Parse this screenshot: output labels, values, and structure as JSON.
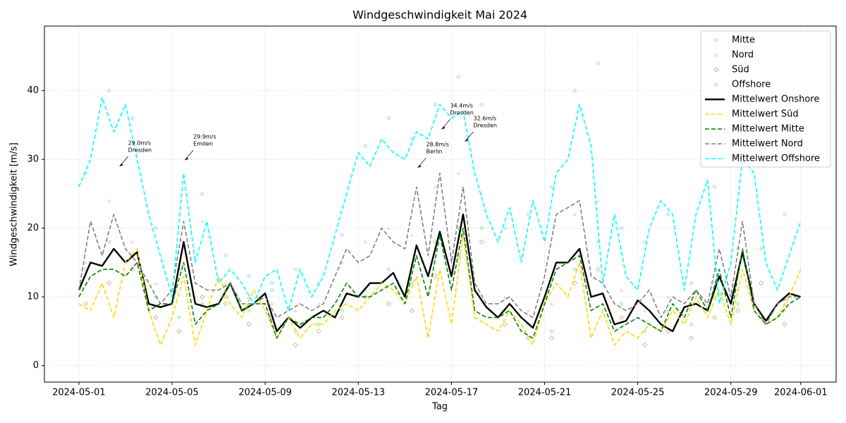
{
  "chart_data": {
    "type": "line",
    "title": "Windgeschwindigkeit Mai 2024",
    "xlabel": "Tag",
    "ylabel": "Windgeschwindigkeit [m/s]",
    "xlim": [
      -1.48,
      32.52
    ],
    "ylim": [
      -2.4,
      49.4
    ],
    "xticks": [
      {
        "value": 0,
        "label": "2024-05-01"
      },
      {
        "value": 4,
        "label": "2024-05-05"
      },
      {
        "value": 8,
        "label": "2024-05-09"
      },
      {
        "value": 12,
        "label": "2024-05-13"
      },
      {
        "value": 16,
        "label": "2024-05-17"
      },
      {
        "value": 20,
        "label": "2024-05-21"
      },
      {
        "value": 24,
        "label": "2024-05-25"
      },
      {
        "value": 28,
        "label": "2024-05-29"
      },
      {
        "value": 31,
        "label": "2024-06-01"
      }
    ],
    "yticks": [
      0,
      10,
      20,
      30,
      40
    ],
    "grid": true,
    "legend": "upper right",
    "x": [
      0,
      0.5,
      1,
      1.5,
      2,
      2.5,
      3,
      3.5,
      4,
      4.5,
      5,
      5.5,
      6,
      6.5,
      7,
      7.5,
      8,
      8.5,
      9,
      9.5,
      10,
      10.5,
      11,
      11.5,
      12,
      12.5,
      13,
      13.5,
      14,
      14.5,
      15,
      15.5,
      16,
      16.5,
      17,
      17.5,
      18,
      18.5,
      19,
      19.5,
      20,
      20.5,
      21,
      21.5,
      22,
      22.5,
      23,
      23.5,
      24,
      24.5,
      25,
      25.5,
      26,
      26.5,
      27,
      27.5,
      28,
      28.5,
      29,
      29.5,
      30,
      30.5,
      31
    ],
    "series": [
      {
        "name": "Mitte",
        "type": "scatter",
        "marker": "circle",
        "color": "#90ee90",
        "x": [
          0.3,
          1.3,
          2.3,
          3.3,
          4.3,
          5.3,
          6.3,
          7.3,
          8.3,
          9.3,
          10.3,
          11.3,
          12.3,
          13.3,
          14.3,
          15.3,
          16.3,
          17.3,
          18.3,
          19.3,
          20.3,
          21.3,
          22.3,
          23.3,
          24.3,
          25.3,
          26.3,
          27.3,
          28.3,
          29.3,
          30.3
        ],
        "values": [
          14,
          18,
          16,
          10,
          7,
          9,
          10,
          8,
          11,
          5,
          6,
          8,
          11,
          14,
          12,
          18,
          20,
          20,
          8,
          6,
          5,
          14,
          18,
          9,
          5,
          8,
          6,
          10,
          9,
          17,
          8
        ]
      },
      {
        "name": "Nord",
        "type": "scatter",
        "marker": "triangle",
        "color": "#f4c2cc",
        "x": [
          0.3,
          1.3,
          2.3,
          3.3,
          4.3,
          5.3,
          6.3,
          7.3,
          8.3,
          9.3,
          10.3,
          11.3,
          12.3,
          13.3,
          14.3,
          15.3,
          16.3,
          17.3,
          18.3,
          19.3,
          20.3,
          21.3,
          22.3,
          23.3,
          24.3,
          25.3,
          26.3,
          27.3,
          28.3,
          29.3,
          30.3
        ],
        "values": [
          15,
          24,
          18,
          12,
          14,
          21,
          12,
          10,
          9,
          8,
          9,
          15,
          18,
          20,
          19,
          26,
          28,
          25,
          10,
          8,
          9,
          22,
          24,
          11,
          8,
          10,
          9,
          12,
          11,
          20,
          9
        ]
      },
      {
        "name": "Süd",
        "type": "scatter",
        "marker": "diamond",
        "color": "#c8a878",
        "x": [
          0.3,
          1.3,
          2.3,
          3.3,
          4.3,
          5.3,
          6.3,
          7.3,
          8.3,
          9.3,
          10.3,
          11.3,
          12.3,
          13.3,
          14.3,
          15.3,
          16.3,
          17.3,
          18.3,
          19.3,
          20.3,
          21.3,
          22.3,
          23.3,
          24.3,
          25.3,
          26.3,
          27.3,
          28.3,
          29.3,
          30.3
        ],
        "values": [
          9,
          12,
          14,
          7,
          5,
          10,
          9,
          6,
          7,
          3,
          5,
          7,
          10,
          9,
          8,
          13,
          16,
          18,
          6,
          4,
          4,
          12,
          14,
          7,
          3,
          5,
          4,
          7,
          8,
          12,
          6
        ]
      },
      {
        "name": "Offshore",
        "type": "scatter",
        "marker": "circle",
        "color": "#add8e6",
        "x": [
          0.3,
          1.3,
          2.3,
          3.3,
          4.3,
          5.3,
          6.3,
          7.3,
          8.3,
          9.3,
          10.3,
          11.3,
          12.3,
          13.3,
          14.3,
          15.3,
          16.3,
          17.3,
          18.3,
          19.3,
          20.3,
          21.3,
          22.3,
          23.3,
          24.3,
          25.3,
          26.3,
          27.3,
          28.3,
          29.3,
          30.3
        ],
        "values": [
          28,
          40,
          36,
          20,
          14,
          25,
          16,
          13,
          12,
          14,
          12,
          19,
          32,
          36,
          33,
          38,
          42,
          38,
          20,
          22,
          26,
          40,
          44,
          20,
          18,
          22,
          12,
          26,
          17,
          30,
          22
        ]
      },
      {
        "name": "Mittelwert Onshore",
        "type": "line",
        "dashed": false,
        "color": "#000000",
        "values": [
          11,
          15,
          14.5,
          17,
          15,
          16.5,
          9,
          8.5,
          9,
          18,
          9,
          8.5,
          9,
          12,
          8,
          9,
          10.5,
          5,
          7,
          5.5,
          7,
          8,
          7,
          10.5,
          10,
          12,
          12,
          13.5,
          10,
          17.5,
          13,
          19.5,
          13,
          22,
          11,
          8.5,
          7,
          9,
          7,
          5.5,
          10,
          15,
          15,
          17,
          10,
          10.5,
          6,
          6.5,
          9.5,
          8,
          6,
          5,
          8.5,
          9,
          8,
          13,
          9,
          16.5,
          9,
          6.5,
          9,
          10.5,
          10
        ]
      },
      {
        "name": "Mittelwert Süd",
        "type": "line",
        "dashed": true,
        "color": "#ffd700",
        "values": [
          9,
          8,
          12,
          7,
          15,
          17,
          8,
          3,
          7,
          13,
          3,
          8,
          13,
          9,
          7,
          11,
          8,
          4,
          7,
          4,
          6,
          6,
          8,
          9,
          8,
          10,
          12,
          11,
          9,
          13,
          4,
          14,
          6,
          19,
          7,
          6,
          5,
          8,
          6,
          3,
          9,
          12,
          10,
          15,
          4,
          8,
          3,
          5,
          4,
          6,
          5,
          8,
          6,
          10,
          7,
          11,
          6,
          14,
          8,
          6,
          7,
          10,
          14
        ]
      },
      {
        "name": "Mittelwert Mitte",
        "type": "line",
        "dashed": true,
        "color": "#008000",
        "values": [
          10,
          13,
          14,
          14,
          13,
          15,
          8,
          9,
          9,
          15,
          6,
          8,
          9,
          12,
          8,
          9,
          9,
          4,
          7,
          6,
          7,
          7,
          9,
          12,
          10,
          10,
          11,
          12,
          9,
          16,
          10,
          19,
          11,
          20,
          8,
          7,
          7,
          8,
          5,
          4,
          9,
          14,
          15,
          16,
          8,
          9,
          5,
          6,
          7,
          6,
          5,
          9,
          7,
          11,
          8,
          14,
          7,
          17,
          8,
          6,
          7,
          9,
          10
        ]
      },
      {
        "name": "Mittelwert Nord",
        "type": "line",
        "dashed": true,
        "color": "#808080",
        "values": [
          11,
          21,
          16,
          22,
          17,
          15,
          12,
          9,
          11,
          21,
          12,
          11,
          11,
          12,
          9,
          9,
          10,
          7,
          8,
          9,
          8,
          9,
          13,
          17,
          15,
          16,
          20,
          18,
          17,
          26,
          16,
          28,
          15,
          26,
          12,
          9,
          9,
          10,
          8,
          7,
          13,
          22,
          23,
          24,
          13,
          12,
          9,
          8,
          9,
          11,
          7,
          10,
          9,
          11,
          9,
          17,
          10,
          21,
          9,
          6,
          9,
          10,
          10
        ]
      },
      {
        "name": "Mittelwert Offshore",
        "type": "line",
        "dashed": true,
        "color": "#00ffff",
        "values": [
          26,
          30,
          39,
          34,
          38,
          30,
          22,
          16,
          10,
          28,
          15,
          21,
          12,
          14,
          12,
          9,
          13,
          14,
          8,
          14,
          10,
          13,
          19,
          25,
          31,
          29,
          33,
          31,
          30,
          34,
          33,
          38,
          36,
          37,
          28,
          22,
          18,
          23,
          15,
          24,
          18,
          28,
          30,
          38,
          32,
          12,
          22,
          13,
          11,
          20,
          24,
          22,
          11,
          22,
          27,
          9,
          15,
          30,
          28,
          15,
          11,
          16,
          21
        ]
      }
    ],
    "annotations": [
      {
        "text": "29.0m/s",
        "place": "Dresden",
        "x": 1.75,
        "y": 29.0
      },
      {
        "text": "29.9m/s",
        "place": "Emden",
        "x": 4.55,
        "y": 29.9
      },
      {
        "text": "28.8m/s",
        "place": "Berlin",
        "x": 14.55,
        "y": 28.8
      },
      {
        "text": "34.4m/s",
        "place": "Dresden",
        "x": 15.58,
        "y": 34.4
      },
      {
        "text": "32.6m/s",
        "place": "Dresden",
        "x": 16.58,
        "y": 32.6
      }
    ]
  }
}
